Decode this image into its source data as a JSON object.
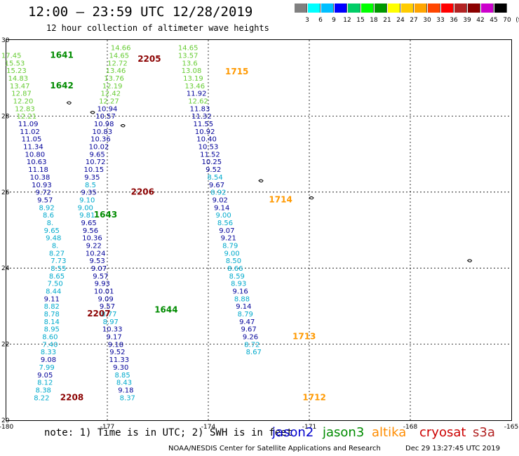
{
  "header": {
    "title": "12:00 – 23:59 UTC 12/28/2019",
    "subtitle": "12 hour collection of altimeter wave heights"
  },
  "colorbar": {
    "labels": [
      "3",
      "6",
      "9",
      "12",
      "15",
      "18",
      "21",
      "24",
      "27",
      "30",
      "33",
      "36",
      "39",
      "42",
      "45",
      "70",
      "(ft)"
    ],
    "colors": [
      "#808080",
      "#00ffff",
      "#00bfff",
      "#0000ff",
      "#00cd66",
      "#00ff00",
      "#009900",
      "#ffff00",
      "#ffcc00",
      "#ffa500",
      "#ff4500",
      "#ff0000",
      "#b22222",
      "#8b0000",
      "#cc00cc",
      "#000000"
    ]
  },
  "axes": {
    "lon_labels": [
      "-180",
      "-177",
      "-174",
      "-171",
      "-168",
      "-165"
    ],
    "lat_labels": [
      "30",
      "28",
      "26",
      "24",
      "22",
      "20"
    ]
  },
  "colors": {
    "jason2": "#0000cd",
    "jason3": "#008b00",
    "altika": "#ff8c00",
    "cryosat": "#cc0000",
    "s3a": "#b22222",
    "green_light": "#66cc33",
    "cyan": "#00aacc",
    "navy": "#000099",
    "time_dark": "#8b0000",
    "time_green": "#008b00",
    "time_orange": "#ff9900"
  },
  "tracks": [
    {
      "name": "track-a",
      "time_labels": [
        {
          "text": "1641",
          "lon": -178.7,
          "lat": 29.53,
          "color": "time_green"
        },
        {
          "text": "1642",
          "lon": -178.7,
          "lat": 28.73,
          "color": "time_green"
        }
      ],
      "points": [
        {
          "v": "17.45",
          "lon": -179.85,
          "lat": 29.53,
          "c": "green_light"
        },
        {
          "v": "15.53",
          "lon": -179.75,
          "lat": 29.33,
          "c": "green_light"
        },
        {
          "v": "15.23",
          "lon": -179.7,
          "lat": 29.13,
          "c": "green_light"
        },
        {
          "v": "14.83",
          "lon": -179.65,
          "lat": 28.93,
          "c": "green_light"
        },
        {
          "v": "13.47",
          "lon": -179.6,
          "lat": 28.73,
          "c": "green_light"
        },
        {
          "v": "12.87",
          "lon": -179.55,
          "lat": 28.53,
          "c": "green_light"
        },
        {
          "v": "12.20",
          "lon": -179.5,
          "lat": 28.33,
          "c": "green_light"
        },
        {
          "v": "12.83",
          "lon": -179.45,
          "lat": 28.13,
          "c": "green_light"
        },
        {
          "v": "12.21",
          "lon": -179.4,
          "lat": 27.93,
          "c": "green_light"
        },
        {
          "v": "11.09",
          "lon": -179.35,
          "lat": 27.73,
          "c": "navy"
        },
        {
          "v": "11.02",
          "lon": -179.3,
          "lat": 27.53,
          "c": "navy"
        },
        {
          "v": "11.05",
          "lon": -179.25,
          "lat": 27.33,
          "c": "navy"
        },
        {
          "v": "11.34",
          "lon": -179.2,
          "lat": 27.13,
          "c": "navy"
        },
        {
          "v": "10.80",
          "lon": -179.15,
          "lat": 26.93,
          "c": "navy"
        },
        {
          "v": "10.63",
          "lon": -179.1,
          "lat": 26.73,
          "c": "navy"
        },
        {
          "v": "11.18",
          "lon": -179.05,
          "lat": 26.53,
          "c": "navy"
        },
        {
          "v": "10.38",
          "lon": -179.0,
          "lat": 26.33,
          "c": "navy"
        },
        {
          "v": "10.93",
          "lon": -178.95,
          "lat": 26.13,
          "c": "navy"
        },
        {
          "v": "9.72",
          "lon": -178.9,
          "lat": 25.93,
          "c": "navy"
        },
        {
          "v": "9.57",
          "lon": -178.85,
          "lat": 25.73,
          "c": "navy"
        },
        {
          "v": "8.92",
          "lon": -178.8,
          "lat": 25.53,
          "c": "cyan"
        },
        {
          "v": "8.6",
          "lon": -178.75,
          "lat": 25.33,
          "c": "cyan"
        },
        {
          "v": "8.",
          "lon": -178.7,
          "lat": 25.13,
          "c": "cyan"
        },
        {
          "v": "9.65",
          "lon": -178.65,
          "lat": 24.93,
          "c": "cyan"
        },
        {
          "v": "9.48",
          "lon": -178.6,
          "lat": 24.73,
          "c": "cyan"
        },
        {
          "v": "8.",
          "lon": -178.55,
          "lat": 24.53,
          "c": "cyan"
        },
        {
          "v": "8.27",
          "lon": -178.5,
          "lat": 24.33,
          "c": "cyan"
        },
        {
          "v": "7.73",
          "lon": -178.45,
          "lat": 24.13,
          "c": "cyan"
        },
        {
          "v": "8.55",
          "lon": -178.45,
          "lat": 23.93,
          "c": "cyan"
        },
        {
          "v": "8.65",
          "lon": -178.5,
          "lat": 23.73,
          "c": "cyan"
        },
        {
          "v": "7.50",
          "lon": -178.55,
          "lat": 23.53,
          "c": "cyan"
        },
        {
          "v": "8.44",
          "lon": -178.6,
          "lat": 23.33,
          "c": "cyan"
        },
        {
          "v": "9.11",
          "lon": -178.65,
          "lat": 23.13,
          "c": "navy"
        },
        {
          "v": "8.82",
          "lon": -178.65,
          "lat": 22.93,
          "c": "cyan"
        },
        {
          "v": "8.78",
          "lon": -178.65,
          "lat": 22.73,
          "c": "cyan"
        },
        {
          "v": "8.14",
          "lon": -178.65,
          "lat": 22.53,
          "c": "cyan"
        },
        {
          "v": "8.95",
          "lon": -178.65,
          "lat": 22.33,
          "c": "cyan"
        },
        {
          "v": "8.60",
          "lon": -178.7,
          "lat": 22.13,
          "c": "cyan"
        },
        {
          "v": "7.40",
          "lon": -178.7,
          "lat": 21.93,
          "c": "cyan"
        },
        {
          "v": "8.33",
          "lon": -178.75,
          "lat": 21.73,
          "c": "cyan"
        },
        {
          "v": "9.08",
          "lon": -178.75,
          "lat": 21.53,
          "c": "navy"
        },
        {
          "v": "7.99",
          "lon": -178.8,
          "lat": 21.33,
          "c": "cyan"
        },
        {
          "v": "9.05",
          "lon": -178.85,
          "lat": 21.13,
          "c": "navy"
        },
        {
          "v": "8.12",
          "lon": -178.85,
          "lat": 20.93,
          "c": "cyan"
        },
        {
          "v": "8.38",
          "lon": -178.9,
          "lat": 20.73,
          "c": "cyan"
        },
        {
          "v": "8.22",
          "lon": -178.95,
          "lat": 20.53,
          "c": "cyan"
        }
      ]
    },
    {
      "name": "track-b",
      "time_labels": [
        {
          "text": "2205",
          "lon": -176.1,
          "lat": 29.43,
          "color": "time_dark"
        },
        {
          "text": "2206",
          "lon": -176.3,
          "lat": 25.93,
          "color": "time_dark"
        },
        {
          "text": "2207",
          "lon": -177.6,
          "lat": 22.73,
          "color": "time_dark"
        },
        {
          "text": "2208",
          "lon": -178.4,
          "lat": 20.53,
          "color": "time_dark"
        },
        {
          "text": "1643",
          "lon": -177.4,
          "lat": 25.33,
          "color": "time_green"
        },
        {
          "text": "1644",
          "lon": -175.6,
          "lat": 22.83,
          "color": "time_green"
        }
      ],
      "points": [
        {
          "v": "14.66",
          "lon": -176.6,
          "lat": 29.73,
          "c": "green_light"
        },
        {
          "v": "14.65",
          "lon": -176.65,
          "lat": 29.53,
          "c": "green_light"
        },
        {
          "v": "12.72",
          "lon": -176.7,
          "lat": 29.33,
          "c": "green_light"
        },
        {
          "v": "13.46",
          "lon": -176.75,
          "lat": 29.13,
          "c": "green_light"
        },
        {
          "v": "13.76",
          "lon": -176.8,
          "lat": 28.93,
          "c": "green_light"
        },
        {
          "v": "12.19",
          "lon": -176.85,
          "lat": 28.73,
          "c": "green_light"
        },
        {
          "v": "12.42",
          "lon": -176.9,
          "lat": 28.53,
          "c": "green_light"
        },
        {
          "v": "12.27",
          "lon": -176.95,
          "lat": 28.33,
          "c": "green_light"
        },
        {
          "v": "10.94",
          "lon": -177.0,
          "lat": 28.13,
          "c": "navy"
        },
        {
          "v": "10.57",
          "lon": -177.05,
          "lat": 27.93,
          "c": "navy"
        },
        {
          "v": "10.98",
          "lon": -177.1,
          "lat": 27.73,
          "c": "navy"
        },
        {
          "v": "10.83",
          "lon": -177.15,
          "lat": 27.53,
          "c": "navy"
        },
        {
          "v": "10.36",
          "lon": -177.2,
          "lat": 27.33,
          "c": "navy"
        },
        {
          "v": "10.02",
          "lon": -177.25,
          "lat": 27.13,
          "c": "navy"
        },
        {
          "v": "9.65",
          "lon": -177.3,
          "lat": 26.93,
          "c": "navy"
        },
        {
          "v": "10.72",
          "lon": -177.35,
          "lat": 26.73,
          "c": "navy"
        },
        {
          "v": "10.15",
          "lon": -177.4,
          "lat": 26.53,
          "c": "navy"
        },
        {
          "v": "9.35",
          "lon": -177.45,
          "lat": 26.33,
          "c": "navy"
        },
        {
          "v": "8.5",
          "lon": -177.5,
          "lat": 26.13,
          "c": "cyan"
        },
        {
          "v": "9.35",
          "lon": -177.55,
          "lat": 25.93,
          "c": "navy"
        },
        {
          "v": "9.10",
          "lon": -177.6,
          "lat": 25.73,
          "c": "cyan"
        },
        {
          "v": "9.00",
          "lon": -177.65,
          "lat": 25.53,
          "c": "cyan"
        },
        {
          "v": "9.81",
          "lon": -177.6,
          "lat": 25.33,
          "c": "cyan"
        },
        {
          "v": "9.65",
          "lon": -177.55,
          "lat": 25.13,
          "c": "navy"
        },
        {
          "v": "9.56",
          "lon": -177.5,
          "lat": 24.93,
          "c": "navy"
        },
        {
          "v": "10.36",
          "lon": -177.45,
          "lat": 24.73,
          "c": "navy"
        },
        {
          "v": "9.22",
          "lon": -177.4,
          "lat": 24.53,
          "c": "navy"
        },
        {
          "v": "10.24",
          "lon": -177.35,
          "lat": 24.33,
          "c": "navy"
        },
        {
          "v": "9.53",
          "lon": -177.3,
          "lat": 24.13,
          "c": "navy"
        },
        {
          "v": "9.07",
          "lon": -177.25,
          "lat": 23.93,
          "c": "navy"
        },
        {
          "v": "9.57",
          "lon": -177.2,
          "lat": 23.73,
          "c": "navy"
        },
        {
          "v": "9.93",
          "lon": -177.15,
          "lat": 23.53,
          "c": "navy"
        },
        {
          "v": "10.01",
          "lon": -177.1,
          "lat": 23.33,
          "c": "navy"
        },
        {
          "v": "9.09",
          "lon": -177.05,
          "lat": 23.13,
          "c": "navy"
        },
        {
          "v": "9.57",
          "lon": -177.0,
          "lat": 22.93,
          "c": "navy"
        },
        {
          "v": "8.77",
          "lon": -176.95,
          "lat": 22.73,
          "c": "cyan"
        },
        {
          "v": "8.97",
          "lon": -176.9,
          "lat": 22.53,
          "c": "cyan"
        },
        {
          "v": "10.33",
          "lon": -176.85,
          "lat": 22.33,
          "c": "navy"
        },
        {
          "v": "9.17",
          "lon": -176.8,
          "lat": 22.13,
          "c": "navy"
        },
        {
          "v": "9.18",
          "lon": -176.75,
          "lat": 21.93,
          "c": "navy"
        },
        {
          "v": "9.52",
          "lon": -176.7,
          "lat": 21.73,
          "c": "navy"
        },
        {
          "v": "11.33",
          "lon": -176.65,
          "lat": 21.53,
          "c": "navy"
        },
        {
          "v": "9.30",
          "lon": -176.6,
          "lat": 21.33,
          "c": "navy"
        },
        {
          "v": "8.85",
          "lon": -176.55,
          "lat": 21.13,
          "c": "cyan"
        },
        {
          "v": "8.43",
          "lon": -176.5,
          "lat": 20.93,
          "c": "cyan"
        },
        {
          "v": "9.18",
          "lon": -176.45,
          "lat": 20.73,
          "c": "navy"
        },
        {
          "v": "8.37",
          "lon": -176.4,
          "lat": 20.53,
          "c": "cyan"
        }
      ]
    },
    {
      "name": "track-c",
      "time_labels": [
        {
          "text": "1715",
          "lon": -173.5,
          "lat": 29.1,
          "color": "time_orange"
        },
        {
          "text": "1714",
          "lon": -172.2,
          "lat": 25.73,
          "color": "time_orange"
        },
        {
          "text": "1713",
          "lon": -171.5,
          "lat": 22.13,
          "color": "time_orange"
        },
        {
          "text": "1712",
          "lon": -171.2,
          "lat": 20.53,
          "color": "time_orange"
        }
      ],
      "points": [
        {
          "v": "14.65",
          "lon": -174.6,
          "lat": 29.73,
          "c": "green_light"
        },
        {
          "v": "13.57",
          "lon": -174.6,
          "lat": 29.53,
          "c": "green_light"
        },
        {
          "v": "13.6",
          "lon": -174.55,
          "lat": 29.33,
          "c": "green_light"
        },
        {
          "v": "13.08",
          "lon": -174.5,
          "lat": 29.13,
          "c": "green_light"
        },
        {
          "v": "13.19",
          "lon": -174.45,
          "lat": 28.93,
          "c": "green_light"
        },
        {
          "v": "13.46",
          "lon": -174.4,
          "lat": 28.73,
          "c": "green_light"
        },
        {
          "v": "11.92",
          "lon": -174.35,
          "lat": 28.53,
          "c": "navy"
        },
        {
          "v": "12.62",
          "lon": -174.3,
          "lat": 28.33,
          "c": "green_light"
        },
        {
          "v": "11.83",
          "lon": -174.25,
          "lat": 28.13,
          "c": "navy"
        },
        {
          "v": "11.32",
          "lon": -174.2,
          "lat": 27.93,
          "c": "navy"
        },
        {
          "v": "11.55",
          "lon": -174.15,
          "lat": 27.73,
          "c": "navy"
        },
        {
          "v": "10.92",
          "lon": -174.1,
          "lat": 27.53,
          "c": "navy"
        },
        {
          "v": "10.40",
          "lon": -174.05,
          "lat": 27.33,
          "c": "navy"
        },
        {
          "v": "10.53",
          "lon": -174.0,
          "lat": 27.13,
          "c": "navy"
        },
        {
          "v": "11.52",
          "lon": -173.95,
          "lat": 26.93,
          "c": "navy"
        },
        {
          "v": "10.25",
          "lon": -173.9,
          "lat": 26.73,
          "c": "navy"
        },
        {
          "v": "9.52",
          "lon": -173.85,
          "lat": 26.53,
          "c": "navy"
        },
        {
          "v": "8.54",
          "lon": -173.8,
          "lat": 26.33,
          "c": "cyan"
        },
        {
          "v": "9.67",
          "lon": -173.75,
          "lat": 26.13,
          "c": "navy"
        },
        {
          "v": "8.92",
          "lon": -173.7,
          "lat": 25.93,
          "c": "cyan"
        },
        {
          "v": "9.02",
          "lon": -173.65,
          "lat": 25.73,
          "c": "navy"
        },
        {
          "v": "9.14",
          "lon": -173.6,
          "lat": 25.53,
          "c": "navy"
        },
        {
          "v": "9.00",
          "lon": -173.55,
          "lat": 25.33,
          "c": "cyan"
        },
        {
          "v": "8.56",
          "lon": -173.5,
          "lat": 25.13,
          "c": "cyan"
        },
        {
          "v": "9.07",
          "lon": -173.45,
          "lat": 24.93,
          "c": "navy"
        },
        {
          "v": "9.21",
          "lon": -173.4,
          "lat": 24.73,
          "c": "navy"
        },
        {
          "v": "8.79",
          "lon": -173.35,
          "lat": 24.53,
          "c": "cyan"
        },
        {
          "v": "9.00",
          "lon": -173.3,
          "lat": 24.33,
          "c": "cyan"
        },
        {
          "v": "8.50",
          "lon": -173.25,
          "lat": 24.13,
          "c": "cyan"
        },
        {
          "v": "8.66",
          "lon": -173.2,
          "lat": 23.93,
          "c": "cyan"
        },
        {
          "v": "8.59",
          "lon": -173.15,
          "lat": 23.73,
          "c": "cyan"
        },
        {
          "v": "8.93",
          "lon": -173.1,
          "lat": 23.53,
          "c": "cyan"
        },
        {
          "v": "9.16",
          "lon": -173.05,
          "lat": 23.33,
          "c": "navy"
        },
        {
          "v": "8.88",
          "lon": -173.0,
          "lat": 23.13,
          "c": "cyan"
        },
        {
          "v": "9.14",
          "lon": -172.95,
          "lat": 22.93,
          "c": "navy"
        },
        {
          "v": "8.79",
          "lon": -172.9,
          "lat": 22.73,
          "c": "cyan"
        },
        {
          "v": "9.47",
          "lon": -172.85,
          "lat": 22.53,
          "c": "navy"
        },
        {
          "v": "9.67",
          "lon": -172.8,
          "lat": 22.33,
          "c": "navy"
        },
        {
          "v": "9.26",
          "lon": -172.75,
          "lat": 22.13,
          "c": "navy"
        },
        {
          "v": "8.72",
          "lon": -172.7,
          "lat": 21.93,
          "c": "cyan"
        },
        {
          "v": "8.67",
          "lon": -172.65,
          "lat": 21.73,
          "c": "cyan"
        }
      ]
    }
  ],
  "legend": {
    "note": "note: 1) Time is in UTC; 2) SWH is in feet",
    "jason2": "jason2",
    "jason3": "jason3",
    "altika": "altika",
    "cryosat": "cryosat",
    "s3a": "s3a"
  },
  "footer": {
    "credit": "NOAA/NESDIS Center for Satellite Applications and Research",
    "stamp": "Dec 29 13:27:45 UTC 2019"
  }
}
